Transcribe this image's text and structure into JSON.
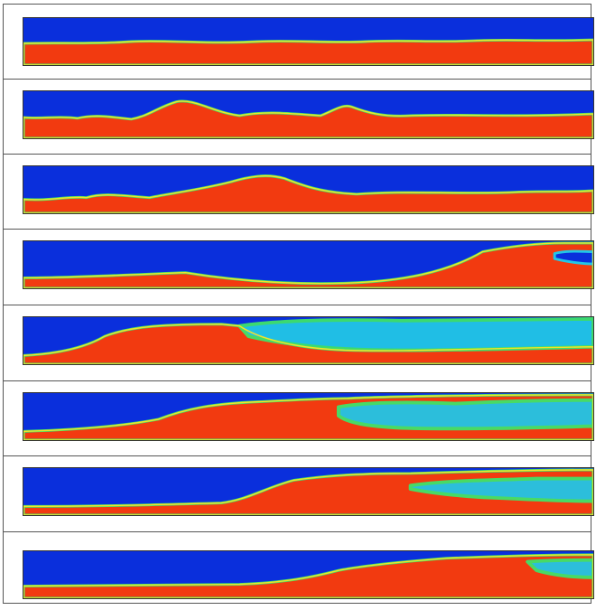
{
  "colors": {
    "gas": "#0a2fdc",
    "liquid": "#f23a10",
    "interface_outer": "#22c6e6",
    "interface_mid": "#3fe36a",
    "interface_inner": "#f5e12a",
    "frame_border": "#555555"
  },
  "colormap": "jet",
  "frame_count": 8,
  "frames": [
    {
      "id": 1,
      "phase_pattern": "stratified-smooth"
    },
    {
      "id": 2,
      "phase_pattern": "small-waves"
    },
    {
      "id": 3,
      "phase_pattern": "growing-wave"
    },
    {
      "id": 4,
      "phase_pattern": "large-wave"
    },
    {
      "id": 5,
      "phase_pattern": "slug-mixing"
    },
    {
      "id": 6,
      "phase_pattern": "slug-front"
    },
    {
      "id": 7,
      "phase_pattern": "slug-propagation"
    },
    {
      "id": 8,
      "phase_pattern": "slug-tail"
    }
  ]
}
